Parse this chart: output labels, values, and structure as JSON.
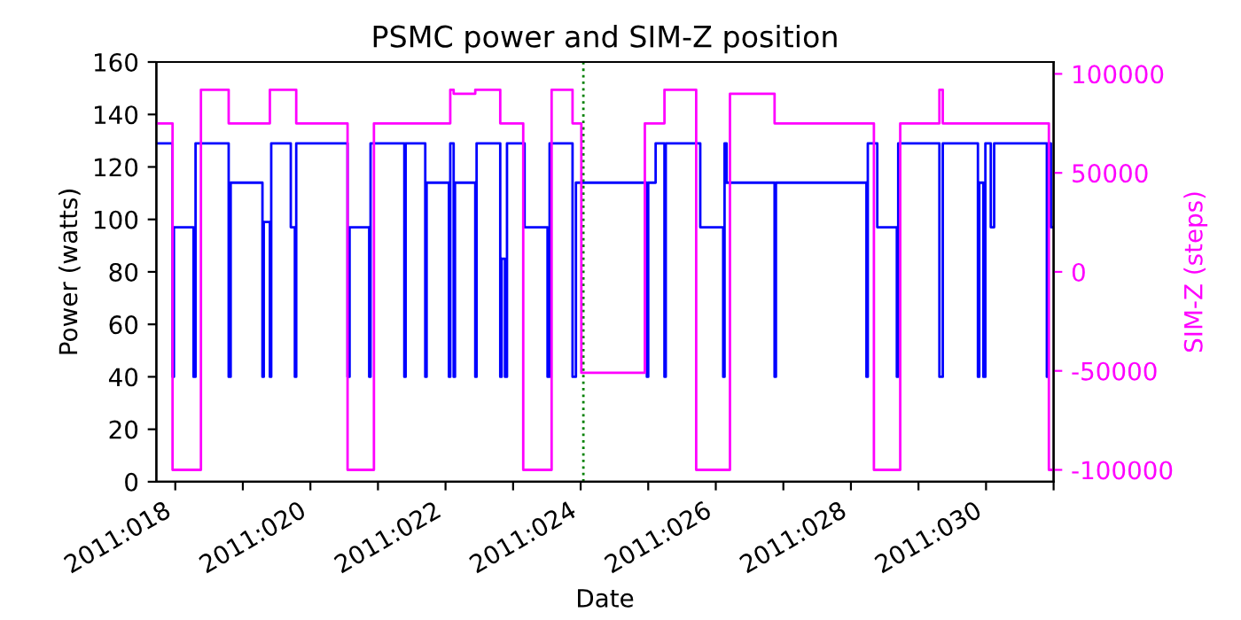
{
  "chart_data": {
    "type": "step",
    "title": "PSMC power and SIM-Z position",
    "xlabel": "Date",
    "ylabel": "Power (watts)",
    "y2label": "SIM-Z (steps)",
    "xlim": [
      "2011-01-17T17:17",
      "2011-01-31T00:00"
    ],
    "xticks": [
      {
        "value": "2011-01-18",
        "label": "2011:018"
      },
      {
        "value": "2011-01-19",
        "label": null
      },
      {
        "value": "2011-01-20",
        "label": "2011:020"
      },
      {
        "value": "2011-01-21",
        "label": null
      },
      {
        "value": "2011-01-22",
        "label": "2011:022"
      },
      {
        "value": "2011-01-23",
        "label": null
      },
      {
        "value": "2011-01-24",
        "label": "2011:024"
      },
      {
        "value": "2011-01-25",
        "label": null
      },
      {
        "value": "2011-01-26",
        "label": "2011:026"
      },
      {
        "value": "2011-01-27",
        "label": null
      },
      {
        "value": "2011-01-28",
        "label": "2011:028"
      },
      {
        "value": "2011-01-29",
        "label": null
      },
      {
        "value": "2011-01-30",
        "label": "2011:030"
      },
      {
        "value": "2011-01-31",
        "label": null
      }
    ],
    "ylim": [
      0,
      160
    ],
    "yticks": [
      0,
      20,
      40,
      60,
      80,
      100,
      120,
      140,
      160
    ],
    "y2lim": [
      -106000,
      106000
    ],
    "y2ticks": [
      -100000,
      -50000,
      0,
      50000,
      100000
    ],
    "grid": false,
    "legend": false,
    "marker": "none",
    "line_style": "solid",
    "ref_lines": [
      {
        "axis": "x",
        "value": "2011-01-24T00:58",
        "label": null,
        "color": "#008000",
        "line_style": "dotted"
      }
    ],
    "series": [
      {
        "color": "#0000ff",
        "x": [
          "2011-01-17T17:17",
          "2011-01-17T23:02",
          "2011-01-17T23:31",
          "2011-01-18T06:29",
          "2011-01-18T07:12",
          "2011-01-18T18:58",
          "2011-01-18T19:41",
          "2011-01-19T06:58",
          "2011-01-19T07:26",
          "2011-01-19T09:36",
          "2011-01-19T10:05",
          "2011-01-19T17:02",
          "2011-01-19T18:29",
          "2011-01-19T18:58",
          "2011-01-20T13:12",
          "2011-01-20T13:55",
          "2011-01-20T20:53",
          "2011-01-20T21:22",
          "2011-01-21T09:22",
          "2011-01-21T09:50",
          "2011-01-21T16:48",
          "2011-01-21T17:17",
          "2011-01-22T01:12",
          "2011-01-22T01:41",
          "2011-01-22T02:53",
          "2011-01-22T03:22",
          "2011-01-22T10:34",
          "2011-01-22T11:02",
          "2011-01-22T19:26",
          "2011-01-22T19:55",
          "2011-01-22T21:07",
          "2011-01-22T21:50",
          "2011-01-23T04:05",
          "2011-01-23T12:14",
          "2011-01-23T12:58",
          "2011-01-23T21:07",
          "2011-01-23T22:19",
          "2011-01-24T23:31",
          "2011-01-25T00:00",
          "2011-01-25T02:38",
          "2011-01-25T05:46",
          "2011-01-25T06:14",
          "2011-01-25T18:29",
          "2011-01-26T02:38",
          "2011-01-26T03:07",
          "2011-01-26T03:50",
          "2011-01-26T20:53",
          "2011-01-26T21:22",
          "2011-01-28T05:31",
          "2011-01-28T06:00",
          "2011-01-28T09:22",
          "2011-01-28T16:19",
          "2011-01-28T16:48",
          "2011-01-29T07:26",
          "2011-01-29T08:38",
          "2011-01-29T21:07",
          "2011-01-29T21:36",
          "2011-01-29T23:02",
          "2011-01-29T23:46",
          "2011-01-30T01:41",
          "2011-01-30T02:53",
          "2011-01-30T21:36",
          "2011-01-30T22:05",
          "2011-01-30T23:02",
          "2011-01-30T23:46"
        ],
        "values": [
          129,
          40,
          97,
          40,
          129,
          40,
          114,
          40,
          99,
          40,
          129,
          97,
          40,
          129,
          40,
          97,
          40,
          129,
          40,
          129,
          40,
          114,
          40,
          129,
          40,
          114,
          40,
          129,
          40,
          85,
          40,
          129,
          97,
          40,
          129,
          40,
          114,
          40,
          114,
          129,
          40,
          129,
          97,
          40,
          129,
          114,
          40,
          114,
          40,
          129,
          97,
          40,
          129,
          40,
          129,
          40,
          114,
          40,
          129,
          97,
          129,
          40,
          129,
          97,
          97
        ]
      },
      {
        "color": "#ff00ff",
        "axis": "y2",
        "x": [
          "2011-01-17T17:17",
          "2011-01-17T23:02",
          "2011-01-18T09:07",
          "2011-01-18T18:58",
          "2011-01-19T09:36",
          "2011-01-19T18:58",
          "2011-01-20T13:12",
          "2011-01-20T22:34",
          "2011-01-22T01:41",
          "2011-01-22T02:53",
          "2011-01-22T10:34",
          "2011-01-22T19:26",
          "2011-01-23T03:36",
          "2011-01-23T13:41",
          "2011-01-23T21:07",
          "2011-01-24T00:14",
          "2011-01-24T22:48",
          "2011-01-25T05:46",
          "2011-01-25T17:02",
          "2011-01-26T05:02",
          "2011-01-26T20:53",
          "2011-01-28T08:10",
          "2011-01-28T17:31",
          "2011-01-29T07:26",
          "2011-01-29T08:38",
          "2011-01-30T22:19",
          "2011-01-30T23:46"
        ],
        "values": [
          75000,
          -100000,
          92000,
          75000,
          92000,
          75000,
          -100000,
          75000,
          92000,
          90000,
          92000,
          75000,
          -100000,
          92000,
          75000,
          -51000,
          75000,
          92000,
          -100000,
          90000,
          75000,
          -100000,
          75000,
          92000,
          75000,
          -100000,
          -100000
        ]
      }
    ]
  }
}
